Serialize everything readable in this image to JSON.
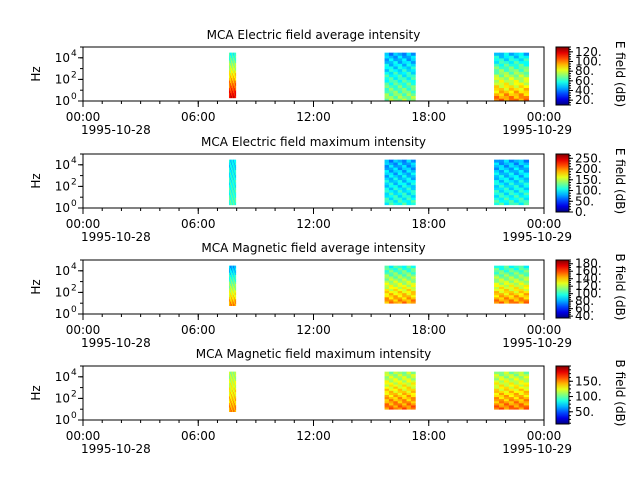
{
  "chart_data": [
    {
      "type": "heatmap",
      "title": "MCA  Electric field average intensity",
      "ylabel": "Hz",
      "y_scale": "log",
      "ylim": [
        1,
        100000
      ],
      "y_ticks": [
        {
          "exp": "0",
          "value": 1
        },
        {
          "exp": "2",
          "value": 100
        },
        {
          "exp": "4",
          "value": 10000
        }
      ],
      "x_ticks": [
        "00:00",
        "06:00",
        "12:00",
        "18:00",
        "00:00"
      ],
      "x_tick_hours": [
        0,
        6,
        12,
        18,
        24
      ],
      "x_dates": [
        "1995-10-28",
        "1995-10-29"
      ],
      "colorbar": {
        "label": "E field (dB)",
        "min": 10,
        "max": 130,
        "ticks": [
          "20.",
          "40.",
          "60.",
          "80.",
          "100.",
          "120."
        ],
        "tick_values": [
          20,
          40,
          60,
          80,
          100,
          120
        ]
      },
      "blocks": [
        {
          "start_hour": 7.6,
          "end_hour": 7.95,
          "freq_min": 2,
          "freq_max": 30000,
          "value_low_freq": 118,
          "value_high_freq": 58
        },
        {
          "start_hour": 15.7,
          "end_hour": 17.3,
          "freq_min": 1,
          "freq_max": 30000,
          "value_low_freq": 72,
          "value_high_freq": 45
        },
        {
          "start_hour": 21.4,
          "end_hour": 23.2,
          "freq_min": 1,
          "freq_max": 30000,
          "value_low_freq": 100,
          "value_high_freq": 50
        }
      ]
    },
    {
      "type": "heatmap",
      "title": "MCA  Electric field maximum intensity",
      "ylabel": "Hz",
      "y_scale": "log",
      "ylim": [
        1,
        100000
      ],
      "y_ticks": [
        {
          "exp": "0",
          "value": 1
        },
        {
          "exp": "2",
          "value": 100
        },
        {
          "exp": "4",
          "value": 10000
        }
      ],
      "x_ticks": [
        "00:00",
        "06:00",
        "12:00",
        "18:00",
        "00:00"
      ],
      "x_tick_hours": [
        0,
        6,
        12,
        18,
        24
      ],
      "x_dates": [
        "1995-10-28",
        "1995-10-29"
      ],
      "colorbar": {
        "label": "E field (dB)",
        "min": 0,
        "max": 270,
        "ticks": [
          "0.",
          "50.",
          "100.",
          "150.",
          "200.",
          "250."
        ],
        "tick_values": [
          0,
          50,
          100,
          150,
          200,
          250
        ]
      },
      "blocks": [
        {
          "start_hour": 7.6,
          "end_hour": 7.95,
          "freq_min": 2,
          "freq_max": 30000,
          "value_low_freq": 120,
          "value_high_freq": 95
        },
        {
          "start_hour": 15.7,
          "end_hour": 17.3,
          "freq_min": 2,
          "freq_max": 30000,
          "value_low_freq": 110,
          "value_high_freq": 78
        },
        {
          "start_hour": 21.4,
          "end_hour": 23.2,
          "freq_min": 2,
          "freq_max": 30000,
          "value_low_freq": 112,
          "value_high_freq": 80
        }
      ]
    },
    {
      "type": "heatmap",
      "title": "MCA  Magnetic field average intensity",
      "ylabel": "Hz",
      "y_scale": "log",
      "ylim": [
        1,
        100000
      ],
      "y_ticks": [
        {
          "exp": "0",
          "value": 1
        },
        {
          "exp": "2",
          "value": 100
        },
        {
          "exp": "4",
          "value": 10000
        }
      ],
      "x_ticks": [
        "00:00",
        "06:00",
        "12:00",
        "18:00",
        "00:00"
      ],
      "x_tick_hours": [
        0,
        6,
        12,
        18,
        24
      ],
      "x_dates": [
        "1995-10-28",
        "1995-10-29"
      ],
      "colorbar": {
        "label": "B field (dB)",
        "min": 35,
        "max": 190,
        "ticks": [
          "40.",
          "60.",
          "80.",
          "100.",
          "120.",
          "140.",
          "160.",
          "180."
        ],
        "tick_values": [
          40,
          60,
          80,
          100,
          120,
          140,
          160,
          180
        ]
      },
      "blocks": [
        {
          "start_hour": 7.6,
          "end_hour": 7.95,
          "freq_min": 6,
          "freq_max": 30000,
          "value_low_freq": 150,
          "value_high_freq": 80
        },
        {
          "start_hour": 15.7,
          "end_hour": 17.3,
          "freq_min": 10,
          "freq_max": 30000,
          "value_low_freq": 148,
          "value_high_freq": 100
        },
        {
          "start_hour": 21.4,
          "end_hour": 23.2,
          "freq_min": 10,
          "freq_max": 30000,
          "value_low_freq": 150,
          "value_high_freq": 100
        }
      ]
    },
    {
      "type": "heatmap",
      "title": "MCA  Magnetic field maximum intensity",
      "ylabel": "Hz",
      "y_scale": "log",
      "ylim": [
        1,
        100000
      ],
      "y_ticks": [
        {
          "exp": "0",
          "value": 1
        },
        {
          "exp": "2",
          "value": 100
        },
        {
          "exp": "4",
          "value": 10000
        }
      ],
      "x_ticks": [
        "00:00",
        "06:00",
        "12:00",
        "18:00",
        "00:00"
      ],
      "x_tick_hours": [
        0,
        6,
        12,
        18,
        24
      ],
      "x_dates": [
        "1995-10-28",
        "1995-10-29"
      ],
      "colorbar": {
        "label": "B field (dB)",
        "min": 10,
        "max": 200,
        "ticks": [
          "50.",
          "100.",
          "150."
        ],
        "tick_values": [
          50,
          100,
          150
        ]
      },
      "blocks": [
        {
          "start_hour": 7.6,
          "end_hour": 7.95,
          "freq_min": 6,
          "freq_max": 30000,
          "value_low_freq": 150,
          "value_high_freq": 110
        },
        {
          "start_hour": 15.7,
          "end_hour": 17.3,
          "freq_min": 10,
          "freq_max": 30000,
          "value_low_freq": 155,
          "value_high_freq": 110
        },
        {
          "start_hour": 21.4,
          "end_hour": 23.2,
          "freq_min": 10,
          "freq_max": 30000,
          "value_low_freq": 155,
          "value_high_freq": 110
        }
      ]
    }
  ]
}
